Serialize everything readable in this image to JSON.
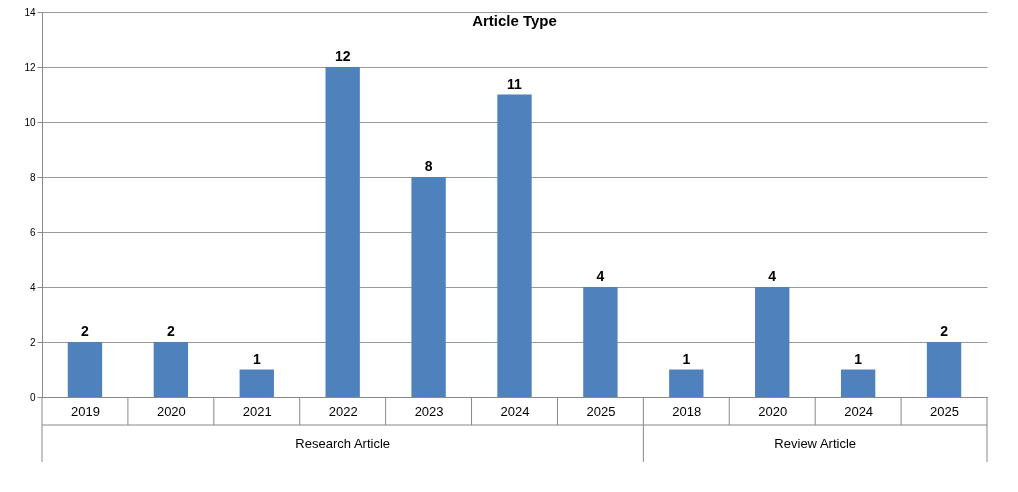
{
  "chart_data": {
    "type": "bar",
    "title": "Article Type",
    "categories": [
      "2019",
      "2020",
      "2021",
      "2022",
      "2023",
      "2024",
      "2025",
      "2018",
      "2020",
      "2024",
      "2025"
    ],
    "values": [
      2,
      2,
      1,
      12,
      8,
      11,
      4,
      1,
      4,
      1,
      2
    ],
    "color": "#4f81bd",
    "ylim": [
      0,
      14
    ],
    "yticks": [
      0,
      2,
      4,
      6,
      8,
      10,
      12,
      14
    ],
    "grid": "y",
    "data_labels": true,
    "annotations": [
      "Research Article",
      "Review Article"
    ]
  }
}
